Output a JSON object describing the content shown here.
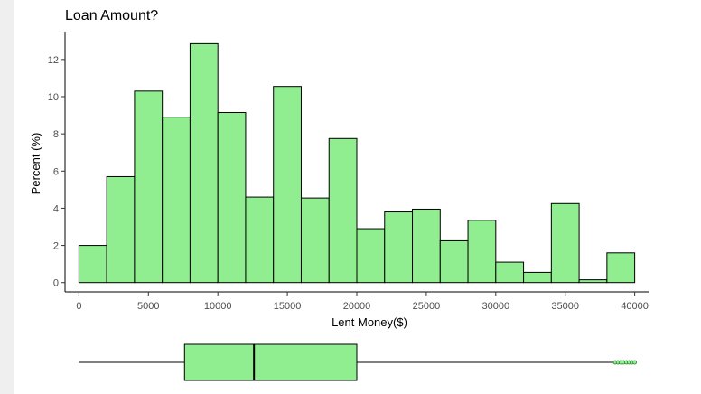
{
  "title": "Loan Amount?",
  "chart_data": {
    "type": "bar",
    "title": "Loan Amount?",
    "xlabel": "Lent Money($)",
    "ylabel": "Percent (%)",
    "bin_width": 2000,
    "bin_starts": [
      0,
      2000,
      4000,
      6000,
      8000,
      10000,
      12000,
      14000,
      16000,
      18000,
      20000,
      22000,
      24000,
      26000,
      28000,
      30000,
      32000,
      34000,
      36000,
      38000
    ],
    "values": [
      2.0,
      5.7,
      10.3,
      8.9,
      12.85,
      9.15,
      4.6,
      10.55,
      4.55,
      7.75,
      2.9,
      3.8,
      3.95,
      2.25,
      3.35,
      1.1,
      0.55,
      4.25,
      0.15,
      1.6
    ],
    "xlim": [
      -1000,
      41000
    ],
    "ylim": [
      -0.5,
      13.5
    ],
    "xticks": [
      0,
      5000,
      10000,
      15000,
      20000,
      25000,
      30000,
      35000,
      40000
    ],
    "yticks": [
      0,
      2,
      4,
      6,
      8,
      10,
      12
    ],
    "bar_color": "#90EE90",
    "bar_edge": "#000000",
    "grid": false,
    "boxplot": {
      "whisker_low": 0,
      "q1": 7600,
      "median": 12600,
      "q3": 20000,
      "whisker_high": 38500,
      "outliers": [
        38600,
        38800,
        39000,
        39200,
        39400,
        39600,
        39800,
        40000
      ]
    }
  }
}
